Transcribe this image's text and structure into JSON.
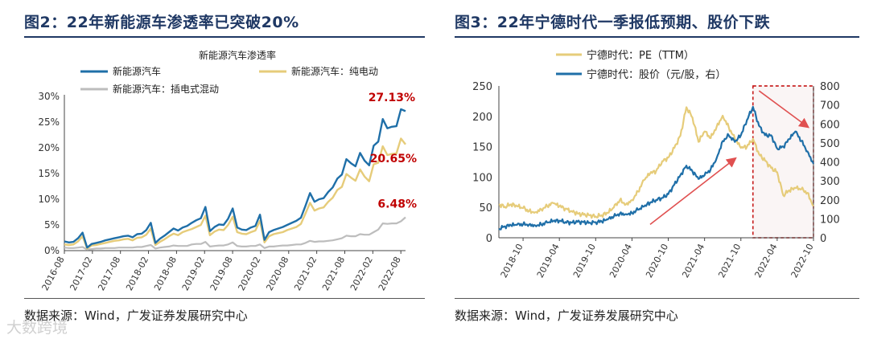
{
  "left": {
    "figure_title": "图2：22年新能源车渗透率已突破20%",
    "source": "数据来源：Wind，广发证券发展研究中心"
  },
  "right": {
    "figure_title": "图3：22年宁德时代一季报低预期、股价下跌",
    "source": "数据来源：Wind，广发证券发展研究中心"
  },
  "watermark": "大数跨境",
  "colors": {
    "blue": "#1f6fa8",
    "gold": "#e6cc7a",
    "gray": "#bdbdbd",
    "red": "#c00000",
    "axis": "#444444"
  },
  "chart_data": [
    {
      "type": "line",
      "title": "新能源汽车渗透率",
      "y_axis": {
        "min": 0,
        "max": 30,
        "step": 5,
        "tick_labels": [
          "0%",
          "5%",
          "10%",
          "15%",
          "20%",
          "25%",
          "30%"
        ]
      },
      "x_axis": {
        "start": "2016-08",
        "end": "2022-09",
        "tick_labels": [
          "2016-08",
          "2017-02",
          "2017-08",
          "2018-02",
          "2018-08",
          "2019-02",
          "2019-08",
          "2020-02",
          "2020-08",
          "2021-02",
          "2021-08",
          "2022-02",
          "2022-08"
        ]
      },
      "legend": [
        "新能源汽车",
        "新能源汽车：纯电动",
        "新能源汽车：插电式混动"
      ],
      "annotations": [
        "27.13%",
        "20.65%",
        "6.48%"
      ],
      "series": [
        {
          "name": "新能源汽车",
          "color": "#1f6fa8",
          "values": [
            1.8,
            1.6,
            1.7,
            2.4,
            3.5,
            0.6,
            1.3,
            1.5,
            1.7,
            2.0,
            2.2,
            2.4,
            2.6,
            2.8,
            2.9,
            2.6,
            3.2,
            3.3,
            4.0,
            5.4,
            1.5,
            2.3,
            2.9,
            3.6,
            4.3,
            3.9,
            4.5,
            4.8,
            5.4,
            5.9,
            6.3,
            8.5,
            3.8,
            4.6,
            5.1,
            5.0,
            6.2,
            8.2,
            4.5,
            4.1,
            4.0,
            4.5,
            4.8,
            7.0,
            2.1,
            3.6,
            4.0,
            4.3,
            4.6,
            5.0,
            5.4,
            5.8,
            6.4,
            8.7,
            11.2,
            9.5,
            10.0,
            10.2,
            11.4,
            12.3,
            14.0,
            14.8,
            17.8,
            17.0,
            16.4,
            19.0,
            17.5,
            16.6,
            20.4,
            21.2,
            25.6,
            23.8,
            24.1,
            24.2,
            27.5,
            27.13
          ]
        },
        {
          "name": "新能源汽车：纯电动",
          "color": "#e6cc7a",
          "values": [
            1.2,
            1.1,
            1.2,
            1.8,
            2.8,
            0.4,
            1.0,
            1.1,
            1.3,
            1.5,
            1.7,
            1.9,
            2.0,
            2.2,
            2.3,
            2.0,
            2.5,
            2.6,
            3.1,
            4.3,
            1.1,
            1.7,
            2.2,
            2.8,
            3.3,
            3.0,
            3.6,
            3.9,
            4.2,
            4.6,
            5.0,
            6.8,
            3.0,
            3.7,
            4.1,
            4.0,
            5.0,
            6.6,
            3.6,
            3.3,
            3.2,
            3.6,
            3.9,
            5.8,
            1.6,
            2.8,
            3.2,
            3.4,
            3.6,
            4.0,
            4.3,
            4.6,
            5.2,
            7.2,
            9.3,
            7.8,
            8.2,
            8.4,
            9.5,
            10.3,
            11.8,
            12.4,
            14.9,
            14.2,
            13.6,
            15.8,
            14.4,
            13.5,
            16.8,
            17.1,
            20.3,
            18.6,
            18.8,
            18.9,
            21.8,
            20.65
          ]
        },
        {
          "name": "新能源汽车：插电式混动",
          "color": "#bdbdbd",
          "values": [
            0.6,
            0.5,
            0.5,
            0.6,
            0.7,
            0.2,
            0.3,
            0.4,
            0.4,
            0.5,
            0.5,
            0.5,
            0.6,
            0.6,
            0.6,
            0.6,
            0.7,
            0.7,
            0.9,
            1.1,
            0.4,
            0.6,
            0.7,
            0.8,
            1.0,
            0.9,
            0.9,
            0.9,
            1.2,
            1.3,
            1.3,
            1.7,
            0.8,
            0.9,
            1.0,
            1.0,
            1.2,
            1.6,
            0.9,
            0.8,
            0.8,
            0.9,
            0.9,
            1.2,
            0.5,
            0.8,
            0.8,
            0.9,
            1.0,
            1.0,
            1.1,
            1.2,
            1.2,
            1.5,
            1.9,
            1.7,
            1.8,
            1.8,
            1.9,
            2.0,
            2.2,
            2.4,
            2.9,
            2.8,
            2.8,
            3.2,
            3.1,
            3.1,
            3.6,
            4.1,
            5.3,
            5.2,
            5.3,
            5.3,
            5.7,
            6.48
          ]
        }
      ]
    },
    {
      "type": "line",
      "legend": [
        "宁德时代：PE（TTM）",
        "宁德时代：股价（元/股，右）"
      ],
      "y_left": {
        "min": 0,
        "max": 250,
        "step": 50,
        "tick_labels": [
          "0",
          "50",
          "100",
          "150",
          "200",
          "250"
        ]
      },
      "y_right": {
        "min": 0,
        "max": 800,
        "step": 100,
        "tick_labels": [
          "0",
          "100",
          "200",
          "300",
          "400",
          "500",
          "600",
          "700",
          "800"
        ]
      },
      "x_axis": {
        "start": "2018-06",
        "end": "2022-10",
        "tick_labels": [
          "2018-10",
          "2019-04",
          "2019-10",
          "2020-04",
          "2020-10",
          "2021-04",
          "2021-10",
          "2022-04",
          "2022-10"
        ]
      },
      "highlight_range": [
        "2021-12",
        "2022-10"
      ],
      "series": [
        {
          "name": "宁德时代：PE（TTM）",
          "axis": "left",
          "color": "#e6cc7a",
          "points": [
            [
              "2018-06",
              55
            ],
            [
              "2018-07",
              51
            ],
            [
              "2018-08",
              55
            ],
            [
              "2018-09",
              52
            ],
            [
              "2018-10",
              49
            ],
            [
              "2018-11",
              44
            ],
            [
              "2018-12",
              42
            ],
            [
              "2019-01",
              47
            ],
            [
              "2019-02",
              52
            ],
            [
              "2019-03",
              57
            ],
            [
              "2019-04",
              52
            ],
            [
              "2019-05",
              48
            ],
            [
              "2019-06",
              44
            ],
            [
              "2019-07",
              40
            ],
            [
              "2019-08",
              38
            ],
            [
              "2019-09",
              37
            ],
            [
              "2019-10",
              35
            ],
            [
              "2019-11",
              37
            ],
            [
              "2019-12",
              41
            ],
            [
              "2020-01",
              50
            ],
            [
              "2020-02",
              62
            ],
            [
              "2020-03",
              55
            ],
            [
              "2020-04",
              62
            ],
            [
              "2020-05",
              76
            ],
            [
              "2020-06",
              95
            ],
            [
              "2020-07",
              106
            ],
            [
              "2020-08",
              110
            ],
            [
              "2020-09",
              126
            ],
            [
              "2020-10",
              132
            ],
            [
              "2020-11",
              148
            ],
            [
              "2020-12",
              168
            ],
            [
              "2021-01",
              215
            ],
            [
              "2021-02",
              198
            ],
            [
              "2021-03",
              158
            ],
            [
              "2021-04",
              175
            ],
            [
              "2021-05",
              164
            ],
            [
              "2021-06",
              183
            ],
            [
              "2021-07",
              201
            ],
            [
              "2021-08",
              182
            ],
            [
              "2021-09",
              163
            ],
            [
              "2021-10",
              148
            ],
            [
              "2021-11",
              150
            ],
            [
              "2021-12",
              163
            ],
            [
              "2022-01",
              138
            ],
            [
              "2022-02",
              127
            ],
            [
              "2022-03",
              115
            ],
            [
              "2022-04",
              108
            ],
            [
              "2022-05",
              70
            ],
            [
              "2022-06",
              78
            ],
            [
              "2022-07",
              82
            ],
            [
              "2022-08",
              80
            ],
            [
              "2022-09",
              74
            ],
            [
              "2022-10",
              52
            ]
          ]
        },
        {
          "name": "宁德时代：股价（元/股，右）",
          "axis": "right",
          "color": "#1f6fa8",
          "points": [
            [
              "2018-06",
              48
            ],
            [
              "2018-07",
              60
            ],
            [
              "2018-08",
              66
            ],
            [
              "2018-09",
              68
            ],
            [
              "2018-10",
              71
            ],
            [
              "2018-11",
              70
            ],
            [
              "2018-12",
              65
            ],
            [
              "2019-01",
              70
            ],
            [
              "2019-02",
              80
            ],
            [
              "2019-03",
              88
            ],
            [
              "2019-04",
              90
            ],
            [
              "2019-05",
              83
            ],
            [
              "2019-06",
              80
            ],
            [
              "2019-07",
              84
            ],
            [
              "2019-08",
              82
            ],
            [
              "2019-09",
              80
            ],
            [
              "2019-10",
              82
            ],
            [
              "2019-11",
              86
            ],
            [
              "2019-12",
              96
            ],
            [
              "2020-01",
              112
            ],
            [
              "2020-02",
              128
            ],
            [
              "2020-03",
              125
            ],
            [
              "2020-04",
              130
            ],
            [
              "2020-05",
              148
            ],
            [
              "2020-06",
              165
            ],
            [
              "2020-07",
              185
            ],
            [
              "2020-08",
              200
            ],
            [
              "2020-09",
              210
            ],
            [
              "2020-10",
              230
            ],
            [
              "2020-11",
              280
            ],
            [
              "2020-12",
              330
            ],
            [
              "2021-01",
              380
            ],
            [
              "2021-02",
              350
            ],
            [
              "2021-03",
              310
            ],
            [
              "2021-04",
              330
            ],
            [
              "2021-05",
              360
            ],
            [
              "2021-06",
              420
            ],
            [
              "2021-07",
              510
            ],
            [
              "2021-08",
              540
            ],
            [
              "2021-09",
              505
            ],
            [
              "2021-10",
              540
            ],
            [
              "2021-11",
              620
            ],
            [
              "2021-12",
              690
            ],
            [
              "2022-01",
              590
            ],
            [
              "2022-02",
              540
            ],
            [
              "2022-03",
              540
            ],
            [
              "2022-04",
              470
            ],
            [
              "2022-05",
              480
            ],
            [
              "2022-06",
              520
            ],
            [
              "2022-07",
              560
            ],
            [
              "2022-08",
              510
            ],
            [
              "2022-09",
              455
            ],
            [
              "2022-10",
              390
            ]
          ]
        }
      ]
    }
  ]
}
